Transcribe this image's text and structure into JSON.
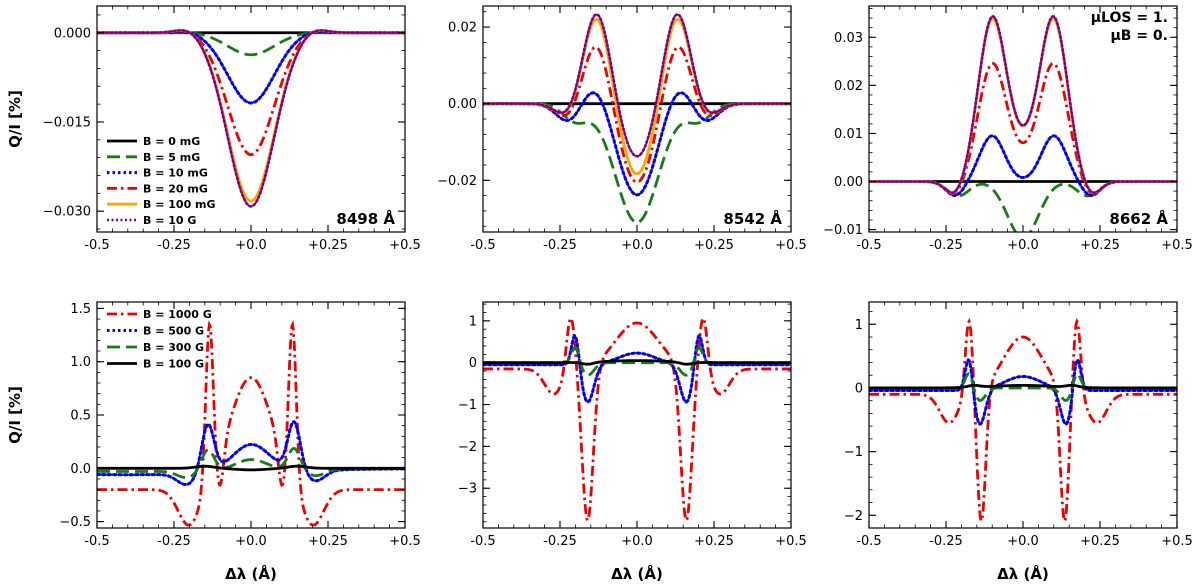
{
  "figure": {
    "ylabel": "Q/I [%]",
    "xlabel": "Δλ (Å)",
    "mu_los": "μLOS = 1.",
    "mu_b": "μB = 0."
  },
  "chart_data": [
    {
      "type": "line",
      "panel": "top-left",
      "line_label": "8498 Å",
      "xlim": [
        -0.5,
        0.5
      ],
      "ylim": [
        -0.0335,
        0.0045
      ],
      "xticks": [
        -0.5,
        -0.25,
        0,
        0.25,
        0.5
      ],
      "xticklabels": [
        "-0.5",
        "-0.25",
        "+0.0",
        "+0.25",
        "+0.5"
      ],
      "yticks": [
        0.0,
        -0.015,
        -0.03
      ],
      "yticklabels": [
        "0.000",
        "−0.015",
        "−0.030"
      ],
      "legend": "lower-left",
      "series": [
        {
          "name": "B = 0 mG",
          "color": "#000000",
          "dash": "solid",
          "shape": "dip",
          "params": [
            -0.2,
            0.2,
            0.0
          ]
        },
        {
          "name": "B = 5 mG",
          "color": "#1a7a1a",
          "dash": "dash",
          "shape": "dip",
          "params": [
            -0.2,
            0.2,
            -0.0037
          ]
        },
        {
          "name": "B = 10 mG",
          "color": "#0000ee",
          "dash": "dot",
          "shape": "dip",
          "params": [
            -0.2,
            0.2,
            -0.0118
          ]
        },
        {
          "name": "B = 20 mG",
          "color": "#ee0000",
          "dash": "dashdot",
          "shape": "dip",
          "params": [
            -0.2,
            0.2,
            -0.0205
          ]
        },
        {
          "name": "B = 100 mG",
          "color": "#ffa500",
          "dash": "solid",
          "shape": "dip",
          "params": [
            -0.2,
            0.2,
            -0.0283
          ]
        },
        {
          "name": "B = 10 G",
          "color": "#800080",
          "dash": "densedot",
          "shape": "dip",
          "params": [
            -0.2,
            0.2,
            -0.0292
          ]
        }
      ]
    },
    {
      "type": "line",
      "panel": "top-middle",
      "line_label": "8542 Å",
      "xlim": [
        -0.5,
        0.5
      ],
      "ylim": [
        -0.0335,
        0.0255
      ],
      "xticks": [
        -0.5,
        -0.25,
        0,
        0.25,
        0.5
      ],
      "xticklabels": [
        "-0.5",
        "-0.25",
        "+0.0",
        "+0.25",
        "+0.5"
      ],
      "yticks": [
        0.02,
        0.0,
        -0.02
      ],
      "yticklabels": [
        "0.02",
        "0.00",
        "−0.02"
      ],
      "legend": "none",
      "series": [
        {
          "name": "B = 0 mG",
          "color": "#000000",
          "dash": "solid",
          "shape": "gauss",
          "params": [
            0
          ]
        },
        {
          "name": "B = 5 mG",
          "color": "#1a7a1a",
          "dash": "dash",
          "shape": "gauss",
          "params": [
            -0.031,
            0,
            0.07,
            -0.0045,
            -0.2,
            0.04,
            -0.0045,
            0.2,
            0.04
          ]
        },
        {
          "name": "B = 10 mG",
          "color": "#0000ee",
          "dash": "dot",
          "shape": "gauss",
          "params": [
            -0.024,
            0,
            0.065,
            0.006,
            -0.13,
            0.045,
            0.006,
            0.13,
            0.045,
            -0.005,
            -0.22,
            0.04,
            -0.005,
            0.22,
            0.04
          ]
        },
        {
          "name": "B = 20 mG",
          "color": "#ee0000",
          "dash": "dashdot",
          "shape": "gauss",
          "params": [
            -0.021,
            0,
            0.06,
            0.017,
            -0.13,
            0.045,
            0.017,
            0.13,
            0.045,
            -0.0045,
            -0.22,
            0.04,
            -0.0045,
            0.22,
            0.04
          ]
        },
        {
          "name": "B = 100 mG",
          "color": "#ffa500",
          "dash": "solid",
          "shape": "gauss",
          "params": [
            -0.019,
            0,
            0.055,
            0.0235,
            -0.13,
            0.045,
            0.0235,
            0.13,
            0.045,
            -0.004,
            -0.22,
            0.04,
            -0.004,
            0.22,
            0.04
          ]
        },
        {
          "name": "B = 10 G",
          "color": "#800080",
          "dash": "densedot",
          "shape": "gauss",
          "params": [
            -0.0145,
            0,
            0.055,
            0.0245,
            -0.13,
            0.045,
            0.0245,
            0.13,
            0.045,
            -0.004,
            -0.22,
            0.04,
            -0.004,
            0.22,
            0.04
          ]
        }
      ]
    },
    {
      "type": "line",
      "panel": "top-right",
      "line_label": "8662 Å",
      "xlim": [
        -0.5,
        0.5
      ],
      "ylim": [
        -0.0105,
        0.0365
      ],
      "xticks": [
        -0.5,
        -0.25,
        0,
        0.25,
        0.5
      ],
      "xticklabels": [
        "-0.5",
        "-0.25",
        "+0.0",
        "+0.25",
        "+0.5"
      ],
      "yticks": [
        0.03,
        0.02,
        0.01,
        0.0,
        -0.01
      ],
      "yticklabels": [
        "0.03",
        "0.02",
        "0.01",
        "0.00",
        "−0.01"
      ],
      "legend": "none",
      "series": [
        {
          "name": "B = 0 mG",
          "color": "#000000",
          "dash": "solid",
          "shape": "gauss",
          "params": [
            0
          ]
        },
        {
          "name": "B = 5 mG",
          "color": "#1a7a1a",
          "dash": "dash",
          "shape": "gauss",
          "params": [
            -0.0065,
            -0.02,
            0.045,
            -0.0065,
            0.02,
            0.045,
            -0.003,
            -0.21,
            0.035,
            -0.003,
            0.21,
            0.035
          ]
        },
        {
          "name": "B = 10 mG",
          "color": "#0000ee",
          "dash": "dot",
          "shape": "gauss",
          "params": [
            0.0095,
            -0.1,
            0.04,
            0.0095,
            0.1,
            0.04,
            -0.003,
            -0.22,
            0.03,
            -0.003,
            0.22,
            0.03
          ]
        },
        {
          "name": "B = 20 mG",
          "color": "#ee0000",
          "dash": "dashdot",
          "shape": "gauss",
          "params": [
            0.024,
            -0.1,
            0.045,
            0.024,
            0.1,
            0.045,
            0.004,
            0,
            0.05,
            -0.003,
            -0.22,
            0.03,
            -0.003,
            0.22,
            0.03
          ]
        },
        {
          "name": "B = 100 mG",
          "color": "#ffa500",
          "dash": "solid",
          "shape": "gauss",
          "params": [
            0.033,
            -0.1,
            0.045,
            0.033,
            0.1,
            0.045,
            0.006,
            0,
            0.05,
            -0.003,
            -0.22,
            0.03,
            -0.003,
            0.22,
            0.03
          ]
        },
        {
          "name": "B = 10 G",
          "color": "#800080",
          "dash": "densedot",
          "shape": "gauss",
          "params": [
            0.0335,
            -0.1,
            0.045,
            0.0335,
            0.1,
            0.045,
            0.006,
            0,
            0.05,
            -0.003,
            -0.22,
            0.03,
            -0.003,
            0.22,
            0.03
          ]
        }
      ]
    },
    {
      "type": "line",
      "panel": "bottom-left",
      "xlim": [
        -0.5,
        0.5
      ],
      "ylim": [
        -0.56,
        1.56
      ],
      "xticks": [
        -0.5,
        -0.25,
        0,
        0.25,
        0.5
      ],
      "xticklabels": [
        "-0.5",
        "-0.25",
        "+0.0",
        "+0.25",
        "+0.5"
      ],
      "yticks": [
        1.5,
        1.0,
        0.5,
        0.0,
        -0.5
      ],
      "yticklabels": [
        "1.5",
        "1.0",
        "0.5",
        "0.0",
        "−0.5"
      ],
      "legend": "upper-left",
      "series": [
        {
          "name": "B = 1000 G",
          "color": "#ee0000",
          "dash": "dashdot",
          "shape": "gauss",
          "params": [
            -0.2,
            -0.5,
            0.5,
            1.05,
            0,
            0.07,
            1.45,
            -0.135,
            0.012,
            1.45,
            0.135,
            0.012,
            -0.35,
            -0.2,
            0.035,
            -0.35,
            0.2,
            0.035,
            -0.35,
            -0.1,
            0.012,
            -0.35,
            0.1,
            0.012
          ]
        },
        {
          "name": "B = 500 G",
          "color": "#0000ee",
          "dash": "dot",
          "shape": "gauss",
          "params": [
            -0.06,
            -0.4,
            0.4,
            0.26,
            0,
            0.06,
            0.45,
            -0.14,
            0.02,
            0.45,
            0.14,
            0.02,
            -0.1,
            -0.21,
            0.03,
            -0.1,
            0.21,
            0.03
          ]
        },
        {
          "name": "B = 300 G",
          "color": "#1a7a1a",
          "dash": "dash",
          "shape": "gauss",
          "params": [
            -0.03,
            -0.4,
            0.4,
            0.1,
            0,
            0.05,
            0.2,
            -0.14,
            0.02,
            0.2,
            0.14,
            0.02,
            -0.06,
            -0.21,
            0.03,
            -0.06,
            0.21,
            0.03
          ]
        },
        {
          "name": "B = 100 G",
          "color": "#000000",
          "dash": "solid",
          "shape": "gauss",
          "params": [
            0.02,
            -0.15,
            0.03,
            0.02,
            0.15,
            0.03,
            -0.015,
            0,
            0.05
          ]
        }
      ]
    },
    {
      "type": "line",
      "panel": "bottom-middle",
      "xlim": [
        -0.5,
        0.5
      ],
      "ylim": [
        -3.95,
        1.45
      ],
      "xticks": [
        -0.5,
        -0.25,
        0,
        0.25,
        0.5
      ],
      "xticklabels": [
        "-0.5",
        "-0.25",
        "+0.0",
        "+0.25",
        "+0.5"
      ],
      "yticks": [
        1,
        0,
        -1,
        -2,
        -3
      ],
      "yticklabels": [
        "1",
        "0",
        "−1",
        "−2",
        "−3"
      ],
      "legend": "none",
      "series": [
        {
          "name": "B = 1000 G",
          "color": "#ee0000",
          "dash": "dashdot",
          "shape": "gauss",
          "params": [
            -0.15,
            -0.5,
            0.5,
            1.1,
            0,
            0.07,
            -3.7,
            -0.16,
            0.018,
            -3.7,
            0.16,
            0.018,
            1.35,
            -0.215,
            0.014,
            1.35,
            0.215,
            0.014,
            -0.6,
            -0.27,
            0.03,
            -0.6,
            0.27,
            0.03
          ]
        },
        {
          "name": "B = 500 G",
          "color": "#0000ee",
          "dash": "dot",
          "shape": "gauss",
          "params": [
            -0.05,
            -0.5,
            0.5,
            0.28,
            0,
            0.06,
            -0.9,
            -0.16,
            0.02,
            -0.9,
            0.16,
            0.02,
            0.8,
            -0.2,
            0.012,
            0.8,
            0.2,
            0.012
          ]
        },
        {
          "name": "B = 300 G",
          "color": "#1a7a1a",
          "dash": "dash",
          "shape": "gauss",
          "params": [
            -0.3,
            -0.16,
            0.02,
            -0.3,
            0.16,
            0.02,
            0.4,
            -0.2,
            0.012,
            0.4,
            0.2,
            0.012
          ]
        },
        {
          "name": "B = 100 G",
          "color": "#000000",
          "dash": "solid",
          "shape": "gauss",
          "params": [
            0.05,
            0,
            0.1,
            -0.05,
            -0.16,
            0.02,
            -0.05,
            0.16,
            0.02
          ]
        }
      ]
    },
    {
      "type": "line",
      "panel": "bottom-right",
      "xlim": [
        -0.5,
        0.5
      ],
      "ylim": [
        -2.2,
        1.35
      ],
      "xticks": [
        -0.5,
        -0.25,
        0,
        0.25,
        0.5
      ],
      "xticklabels": [
        "-0.5",
        "-0.25",
        "+0.0",
        "+0.25",
        "+0.5"
      ],
      "yticks": [
        1,
        0,
        -1,
        -2
      ],
      "yticklabels": [
        "1",
        "0",
        "−1",
        "−2"
      ],
      "legend": "none",
      "series": [
        {
          "name": "B = 1000 G",
          "color": "#ee0000",
          "dash": "dashdot",
          "shape": "gauss",
          "params": [
            -0.1,
            -0.5,
            0.5,
            0.9,
            0,
            0.065,
            -2.1,
            -0.135,
            0.014,
            -2.1,
            0.135,
            0.014,
            1.2,
            -0.175,
            0.012,
            1.2,
            0.175,
            0.012,
            -0.45,
            -0.24,
            0.03,
            -0.45,
            0.24,
            0.03
          ]
        },
        {
          "name": "B = 500 G",
          "color": "#0000ee",
          "dash": "dot",
          "shape": "gauss",
          "params": [
            -0.04,
            -0.5,
            0.5,
            0.22,
            0,
            0.06,
            -0.55,
            -0.14,
            0.018,
            -0.55,
            0.14,
            0.018,
            0.55,
            -0.175,
            0.012,
            0.55,
            0.175,
            0.012
          ]
        },
        {
          "name": "B = 300 G",
          "color": "#1a7a1a",
          "dash": "dash",
          "shape": "gauss",
          "params": [
            -0.2,
            -0.14,
            0.018,
            -0.2,
            0.14,
            0.018,
            0.25,
            -0.175,
            0.012,
            0.25,
            0.175,
            0.012
          ]
        },
        {
          "name": "B = 100 G",
          "color": "#000000",
          "dash": "solid",
          "shape": "gauss",
          "params": [
            0.04,
            0,
            0.1,
            0.03,
            -0.16,
            0.02,
            0.03,
            0.16,
            0.02
          ]
        }
      ]
    }
  ]
}
